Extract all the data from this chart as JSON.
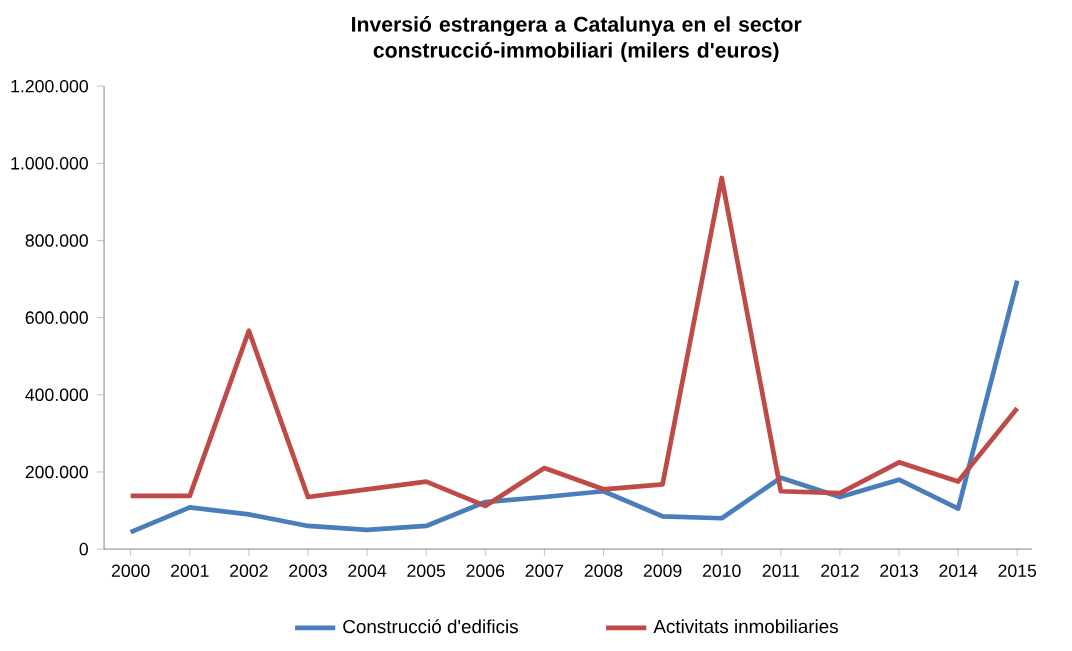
{
  "chart_data": {
    "type": "line",
    "title": "Inversió estrangera a Catalunya en el sector construcció-immobiliari (milers d'euros)",
    "categories": [
      "2000",
      "2001",
      "2002",
      "2003",
      "2004",
      "2005",
      "2006",
      "2007",
      "2008",
      "2009",
      "2010",
      "2011",
      "2012",
      "2013",
      "2014",
      "2015"
    ],
    "series": [
      {
        "name": "Construcció d'edificis",
        "color": "#4a7ebb",
        "values": [
          44000,
          108000,
          90000,
          60000,
          50000,
          60000,
          122000,
          135000,
          150000,
          85000,
          80000,
          185000,
          135000,
          180000,
          105000,
          696000
        ]
      },
      {
        "name": "Activitats inmobiliaries",
        "color": "#be4b48",
        "values": [
          138000,
          138000,
          566000,
          135000,
          155000,
          175000,
          112000,
          210000,
          155000,
          168000,
          962000,
          150000,
          145000,
          225000,
          175000,
          365000
        ]
      }
    ],
    "ylim": [
      0,
      1200000
    ],
    "yticks": [
      0,
      {
        "value": 200000,
        "label": "200.000"
      },
      {
        "value": 400000,
        "label": "400.000"
      },
      {
        "value": 600000,
        "label": "600.000"
      },
      {
        "value": 800000,
        "label": "800.000"
      },
      {
        "value": 1000000,
        "label": "1.000.000"
      },
      {
        "value": 1200000,
        "label": "1.200.000"
      }
    ],
    "legend": "bottom",
    "grid": false,
    "marker": "none",
    "line_style": "solid"
  }
}
